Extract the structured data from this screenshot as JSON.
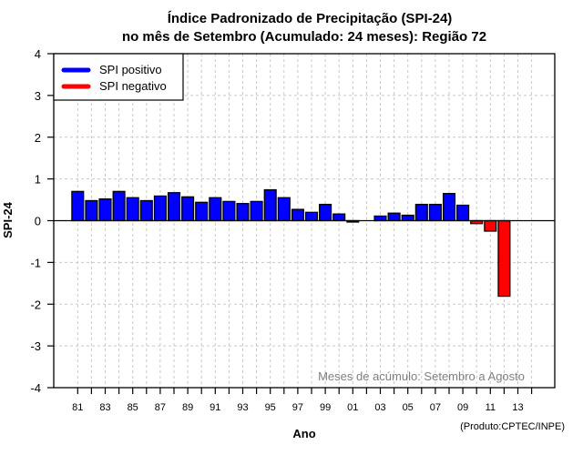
{
  "chart_data": {
    "type": "bar",
    "title": "Índice Padronizado de Precipitação (SPI-24)",
    "subtitle": "no mês de Setembro (Acumulado: 24 meses): Região 72",
    "xlabel": "Ano",
    "ylabel": "SPI-24",
    "ylim": [
      -4,
      4
    ],
    "yticks": [
      -4,
      -3,
      -2,
      -1,
      0,
      1,
      2,
      3,
      4
    ],
    "xlim": [
      1980,
      2015
    ],
    "xtick_years": [
      1981,
      1982,
      1983,
      1984,
      1985,
      1986,
      1987,
      1988,
      1989,
      1990,
      1991,
      1992,
      1993,
      1994,
      1995,
      1996,
      1997,
      1998,
      1999,
      2000,
      2001,
      2002,
      2003,
      2004,
      2005,
      2006,
      2007,
      2008,
      2009,
      2010,
      2011,
      2012,
      2013,
      2014
    ],
    "xtick_labels": [
      "81",
      "83",
      "85",
      "87",
      "89",
      "91",
      "93",
      "95",
      "97",
      "99",
      "01",
      "03",
      "05",
      "07",
      "09",
      "11",
      "13"
    ],
    "xtick_label_years": [
      1981,
      1983,
      1985,
      1987,
      1989,
      1991,
      1993,
      1995,
      1997,
      1999,
      2001,
      2003,
      2005,
      2007,
      2009,
      2011,
      2013
    ],
    "grid": true,
    "colors": {
      "positive": "#0000ff",
      "negative": "#ff0000",
      "border": "#000000"
    },
    "x": [
      1981,
      1982,
      1983,
      1984,
      1985,
      1986,
      1987,
      1988,
      1989,
      1990,
      1991,
      1992,
      1993,
      1994,
      1995,
      1996,
      1997,
      1998,
      1999,
      2000,
      2001,
      2002,
      2003,
      2004,
      2005,
      2006,
      2007,
      2008,
      2009,
      2010,
      2011,
      2012
    ],
    "values": [
      0.7,
      0.48,
      0.52,
      0.7,
      0.55,
      0.48,
      0.59,
      0.67,
      0.57,
      0.44,
      0.55,
      0.46,
      0.41,
      0.46,
      0.74,
      0.55,
      0.27,
      0.2,
      0.39,
      0.16,
      -0.03,
      0.0,
      0.11,
      0.18,
      0.13,
      0.39,
      0.39,
      0.65,
      0.37,
      -0.07,
      -0.25,
      -1.81
    ],
    "legend": {
      "position": "top-left",
      "entries": [
        {
          "label": "SPI positivo",
          "color": "#0000ff"
        },
        {
          "label": "SPI negativo",
          "color": "#ff0000"
        }
      ]
    },
    "annotation": "Meses de acúmulo: Setembro a Agosto",
    "credit": "(Produto:CPTEC/INPE)"
  }
}
